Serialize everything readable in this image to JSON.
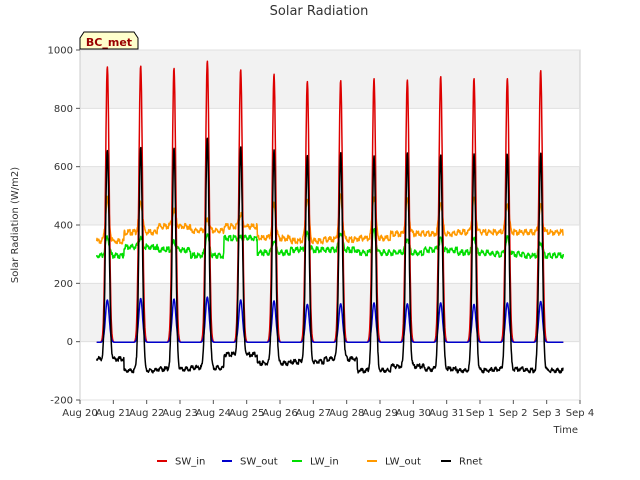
{
  "chart_data": {
    "type": "line",
    "title": "Solar Radiation",
    "xlabel": "Time",
    "ylabel": "Solar Radiation (W/m2)",
    "badge": "BC_met",
    "ylim": [
      -200,
      1000
    ],
    "xlim": [
      0,
      15
    ],
    "yticks": [
      -200,
      0,
      200,
      400,
      600,
      800,
      1000
    ],
    "xticks": [
      {
        "pos": 0,
        "label": "Aug 20"
      },
      {
        "pos": 1,
        "label": "Aug 21"
      },
      {
        "pos": 2,
        "label": "Aug 22"
      },
      {
        "pos": 3,
        "label": "Aug 23"
      },
      {
        "pos": 4,
        "label": "Aug 24"
      },
      {
        "pos": 5,
        "label": "Aug 25"
      },
      {
        "pos": 6,
        "label": "Aug 26"
      },
      {
        "pos": 7,
        "label": "Aug 27"
      },
      {
        "pos": 8,
        "label": "Aug 28"
      },
      {
        "pos": 9,
        "label": "Aug 29"
      },
      {
        "pos": 10,
        "label": "Aug 30"
      },
      {
        "pos": 11,
        "label": "Aug 31"
      },
      {
        "pos": 12,
        "label": "Sep 1"
      },
      {
        "pos": 13,
        "label": "Sep 2"
      },
      {
        "pos": 14,
        "label": "Sep 3"
      },
      {
        "pos": 15,
        "label": "Sep 4"
      }
    ],
    "grid": "horizontal bands",
    "legend_position": "bottom",
    "days": [
      "Aug 21",
      "Aug 22",
      "Aug 23",
      "Aug 24",
      "Aug 25",
      "Aug 26",
      "Aug 27",
      "Aug 28",
      "Aug 29",
      "Aug 30",
      "Aug 31",
      "Sep 1",
      "Sep 2",
      "Sep 3"
    ],
    "series": [
      {
        "name": "SW_in",
        "color": "#dd0000",
        "daily_peak": [
          945,
          948,
          940,
          965,
          935,
          920,
          895,
          898,
          905,
          900,
          912,
          905,
          905,
          932
        ]
      },
      {
        "name": "SW_out",
        "color": "#0000cc",
        "daily_peak": [
          145,
          150,
          148,
          155,
          145,
          142,
          130,
          132,
          135,
          132,
          135,
          130,
          135,
          140
        ]
      },
      {
        "name": "LW_in",
        "color": "#00dd00",
        "night_level": [
          300,
          330,
          320,
          300,
          360,
          310,
          320,
          320,
          310,
          310,
          320,
          310,
          305,
          300
        ],
        "daily_peak": [
          365,
          360,
          345,
          375,
          360,
          350,
          375,
          380,
          385,
          360,
          355,
          365,
          360,
          345
        ]
      },
      {
        "name": "LW_out",
        "color": "#ff9900",
        "night_level": [
          350,
          380,
          400,
          385,
          400,
          360,
          350,
          355,
          360,
          375,
          375,
          380,
          380,
          380
        ],
        "daily_peak": [
          495,
          485,
          455,
          420,
          440,
          475,
          500,
          505,
          505,
          490,
          485,
          495,
          480,
          470
        ]
      },
      {
        "name": "Rnet",
        "color": "#000000",
        "night_level": [
          -55,
          -95,
          -90,
          -85,
          -40,
          -70,
          -65,
          -55,
          -95,
          -80,
          -90,
          -95,
          -90,
          -95
        ],
        "daily_peak": [
          665,
          670,
          672,
          700,
          675,
          655,
          645,
          645,
          645,
          645,
          652,
          648,
          652,
          652
        ]
      }
    ]
  }
}
